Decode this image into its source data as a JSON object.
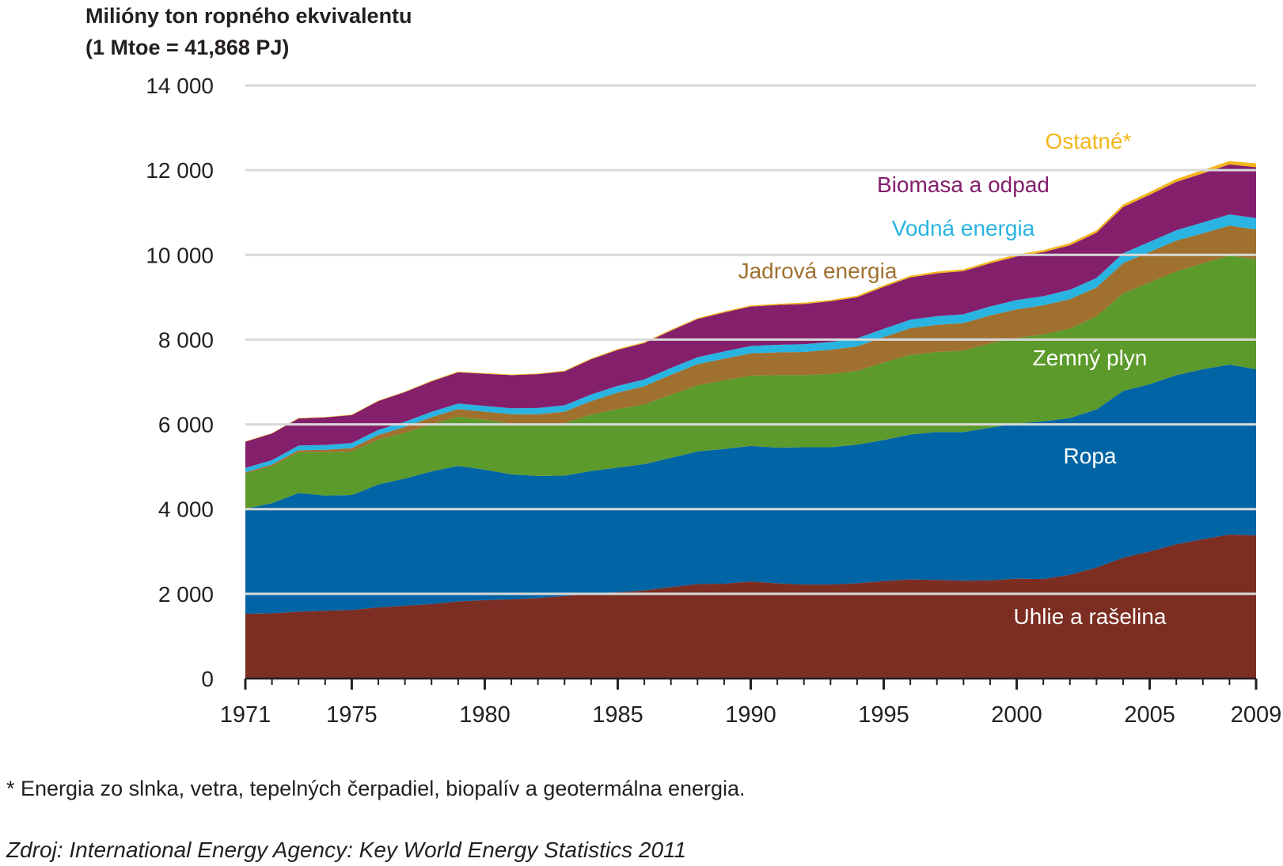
{
  "chart_data": {
    "type": "area",
    "stacked": true,
    "ylabel": "Milióny ton ropného ekvivalentu\n(1 Mtoe = 41,868 PJ)",
    "ylim": [
      0,
      14000
    ],
    "yticks": [
      0,
      2000,
      4000,
      6000,
      8000,
      10000,
      12000,
      14000
    ],
    "ytick_labels": [
      "0",
      "2 000",
      "4 000",
      "6 000",
      "8 000",
      "10 000",
      "12 000",
      "14 000"
    ],
    "xlim": [
      1971,
      2009
    ],
    "xticks": [
      1971,
      1975,
      1980,
      1985,
      1990,
      1995,
      2000,
      2005,
      2009
    ],
    "grid": true,
    "x": [
      1971,
      1972,
      1973,
      1974,
      1975,
      1976,
      1977,
      1978,
      1979,
      1980,
      1981,
      1982,
      1983,
      1984,
      1985,
      1986,
      1987,
      1988,
      1989,
      1990,
      1991,
      1992,
      1993,
      1994,
      1995,
      1996,
      1997,
      1998,
      1999,
      2000,
      2001,
      2002,
      2003,
      2004,
      2005,
      2006,
      2007,
      2008,
      2009
    ],
    "series": [
      {
        "name": "Uhlie a rašelina",
        "color": "#7c2e22",
        "values": [
          1530,
          1540,
          1580,
          1600,
          1620,
          1680,
          1720,
          1760,
          1820,
          1850,
          1870,
          1900,
          1950,
          2000,
          2040,
          2080,
          2160,
          2230,
          2240,
          2290,
          2250,
          2220,
          2220,
          2250,
          2300,
          2340,
          2330,
          2310,
          2320,
          2360,
          2350,
          2450,
          2620,
          2850,
          3000,
          3170,
          3290,
          3400,
          3380
        ]
      },
      {
        "name": "Ropa",
        "color": "#0064a5",
        "values": [
          2480,
          2600,
          2800,
          2720,
          2710,
          2900,
          3000,
          3130,
          3200,
          3080,
          2950,
          2880,
          2840,
          2900,
          2940,
          2980,
          3050,
          3130,
          3180,
          3200,
          3200,
          3240,
          3240,
          3270,
          3330,
          3420,
          3490,
          3510,
          3600,
          3660,
          3720,
          3700,
          3730,
          3940,
          3950,
          3990,
          4010,
          4010,
          3920
        ]
      },
      {
        "name": "Zemný plyn",
        "color": "#5b9a2b",
        "values": [
          830,
          870,
          960,
          1020,
          1030,
          1060,
          1080,
          1110,
          1160,
          1180,
          1200,
          1220,
          1240,
          1330,
          1380,
          1410,
          1490,
          1560,
          1620,
          1660,
          1710,
          1700,
          1730,
          1740,
          1830,
          1880,
          1890,
          1920,
          1990,
          2020,
          2050,
          2110,
          2200,
          2300,
          2400,
          2450,
          2500,
          2570,
          2600
        ]
      },
      {
        "name": "Jadrová energia",
        "color": "#a0702f",
        "values": [
          30,
          40,
          50,
          60,
          80,
          110,
          140,
          170,
          180,
          190,
          220,
          240,
          270,
          320,
          390,
          430,
          470,
          500,
          510,
          525,
          540,
          550,
          570,
          580,
          600,
          630,
          640,
          650,
          660,
          675,
          690,
          695,
          680,
          715,
          720,
          728,
          710,
          710,
          700
        ]
      },
      {
        "name": "Vodná energia",
        "color": "#29b4e2",
        "values": [
          100,
          104,
          110,
          115,
          118,
          120,
          122,
          125,
          130,
          135,
          140,
          145,
          150,
          155,
          158,
          160,
          162,
          165,
          170,
          175,
          178,
          180,
          185,
          190,
          195,
          200,
          205,
          208,
          212,
          220,
          215,
          222,
          225,
          234,
          240,
          245,
          255,
          265,
          270
        ]
      },
      {
        "name": "Biomasa a odpad",
        "color": "#841f6c",
        "values": [
          620,
          630,
          640,
          650,
          660,
          680,
          700,
          720,
          740,
          760,
          780,
          800,
          800,
          830,
          850,
          860,
          880,
          900,
          920,
          930,
          940,
          950,
          960,
          970,
          990,
          1000,
          1010,
          1020,
          1020,
          1030,
          1040,
          1050,
          1070,
          1090,
          1110,
          1140,
          1160,
          1180,
          1200
        ]
      },
      {
        "name": "Ostatné*",
        "color": "#f3b61b",
        "values": [
          10,
          10,
          10,
          10,
          12,
          12,
          12,
          14,
          14,
          15,
          16,
          17,
          18,
          19,
          20,
          21,
          22,
          24,
          25,
          27,
          28,
          30,
          32,
          34,
          36,
          38,
          40,
          42,
          44,
          46,
          48,
          50,
          55,
          60,
          65,
          70,
          75,
          80,
          90
        ]
      }
    ],
    "label_x": [
      1377,
      1377,
      1377,
      1033,
      1217,
      1217,
      1375
    ],
    "label_y": [
      779,
      576,
      452,
      342,
      288,
      233,
      178
    ]
  },
  "footnote": "* Energia zo slnka, vetra, tepelných čerpadiel, biopalív a geotermálna energia.",
  "source": "Zdroj: International Energy Agency: Key World Energy Statistics 2011"
}
